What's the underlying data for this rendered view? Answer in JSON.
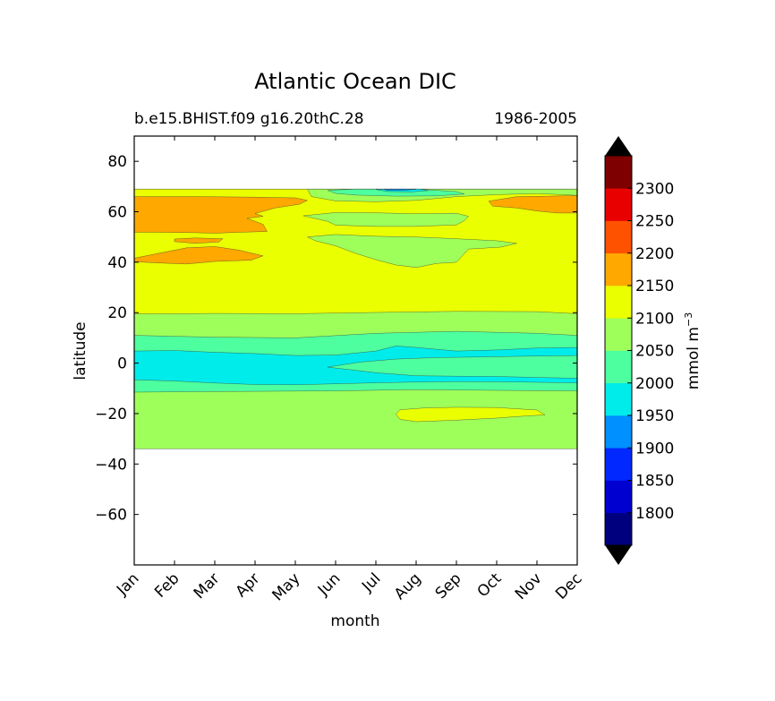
{
  "chart_data": {
    "type": "contourf",
    "title": "Atlantic Ocean DIC",
    "subtitle_left": "b.e15.BHIST.f09 g16.20thC.28",
    "subtitle_right": "1986-2005",
    "xlabel": "month",
    "ylabel": "latitude",
    "x_categories": [
      "Jan",
      "Feb",
      "Mar",
      "Apr",
      "May",
      "Jun",
      "Jul",
      "Aug",
      "Sep",
      "Oct",
      "Nov",
      "Dec"
    ],
    "ylim": [
      -80,
      90
    ],
    "yticks": [
      -60,
      -40,
      -20,
      0,
      20,
      40,
      60,
      80
    ],
    "data_lat_range": [
      -34,
      69
    ],
    "colorbar": {
      "label": "mmol m$^{-3}$",
      "label_main": "mmol m",
      "label_sup": "−3",
      "levels": [
        1750,
        1800,
        1850,
        1900,
        1950,
        2000,
        2050,
        2100,
        2150,
        2200,
        2250,
        2300,
        2350
      ],
      "tick_labels": [
        "1800",
        "1850",
        "1900",
        "1950",
        "2000",
        "2050",
        "2100",
        "2150",
        "2200",
        "2250",
        "2300"
      ],
      "colors": [
        "#00007f",
        "#0000d0",
        "#0028ff",
        "#0090ff",
        "#00ecea",
        "#4dff9e",
        "#9eff5a",
        "#eaff00",
        "#ffa800",
        "#ff5200",
        "#e80000",
        "#7f0000"
      ],
      "extend": "both",
      "under_color": "#000000",
      "over_color": "#000000"
    },
    "regions": [
      {
        "name": "background-2050-2100",
        "class": "2050-2100",
        "points": [
          [
            0,
            -34
          ],
          [
            11,
            -34
          ],
          [
            11,
            69
          ],
          [
            0,
            69
          ]
        ]
      },
      {
        "name": "band-2100-2150-north",
        "class": "2100-2150",
        "points": [
          [
            0,
            19.5
          ],
          [
            2,
            19.7
          ],
          [
            4,
            19.6
          ],
          [
            6,
            20.1
          ],
          [
            8,
            20.5
          ],
          [
            10,
            20.4
          ],
          [
            11,
            19.6
          ],
          [
            11,
            69
          ],
          [
            0,
            69
          ]
        ]
      },
      {
        "name": "band-2000-2050-tropics",
        "class": "2000-2050",
        "points": [
          [
            0,
            11
          ],
          [
            2,
            10.3
          ],
          [
            4,
            10
          ],
          [
            6,
            11.8
          ],
          [
            8,
            12.6
          ],
          [
            10,
            11.8
          ],
          [
            11,
            11
          ],
          [
            11,
            -11
          ],
          [
            9,
            -10.8
          ],
          [
            7,
            -10.5
          ],
          [
            5,
            -11
          ],
          [
            3,
            -11.2
          ],
          [
            0,
            -11.5
          ]
        ]
      },
      {
        "name": "band-1950-2000-equator",
        "class": "1950-2000",
        "points": [
          [
            0,
            4.8
          ],
          [
            1,
            5
          ],
          [
            2,
            4.3
          ],
          [
            3,
            3.8
          ],
          [
            4,
            3
          ],
          [
            5,
            3.2
          ],
          [
            6,
            4.8
          ],
          [
            6.5,
            6.8
          ],
          [
            7,
            6.2
          ],
          [
            8,
            4.8
          ],
          [
            9,
            5.2
          ],
          [
            10,
            6
          ],
          [
            11,
            6.2
          ],
          [
            11,
            -7.8
          ],
          [
            10,
            -7.6
          ],
          [
            9,
            -7.4
          ],
          [
            8,
            -7.3
          ],
          [
            7,
            -7.5
          ],
          [
            6,
            -7.8
          ],
          [
            5,
            -8.2
          ],
          [
            4,
            -8.6
          ],
          [
            3,
            -8.5
          ],
          [
            2,
            -7.9
          ],
          [
            1,
            -7.1
          ],
          [
            0,
            -6.6
          ]
        ]
      },
      {
        "name": "tongue-2000-2050-equator",
        "class": "2000-2050",
        "points": [
          [
            4.8,
            -1.6
          ],
          [
            5.6,
            0.4
          ],
          [
            6.5,
            1.6
          ],
          [
            7.5,
            2.2
          ],
          [
            8.5,
            2.4
          ],
          [
            9.5,
            2.7
          ],
          [
            11,
            3
          ],
          [
            11,
            -6
          ],
          [
            10,
            -5.7
          ],
          [
            9,
            -5.3
          ],
          [
            8,
            -5.2
          ],
          [
            7,
            -5
          ],
          [
            6,
            -3.8
          ],
          [
            5.2,
            -2.3
          ]
        ]
      },
      {
        "name": "patch-2100-2150-south",
        "class": "2100-2150",
        "points": [
          [
            6.6,
            -18.5
          ],
          [
            7.2,
            -17.8
          ],
          [
            8,
            -17.5
          ],
          [
            9,
            -17.6
          ],
          [
            10,
            -18.6
          ],
          [
            10.2,
            -20.5
          ],
          [
            9.5,
            -21.2
          ],
          [
            9,
            -21.8
          ],
          [
            8,
            -22.6
          ],
          [
            7,
            -23.2
          ],
          [
            6.6,
            -22.3
          ],
          [
            6.5,
            -20.2
          ]
        ]
      },
      {
        "name": "patch-2150-2200-jan-feb-north",
        "class": "2150-2200",
        "points": [
          [
            0,
            66
          ],
          [
            1.5,
            66
          ],
          [
            3,
            65.8
          ],
          [
            4,
            65.5
          ],
          [
            4.3,
            64.5
          ],
          [
            4.1,
            63
          ],
          [
            3.5,
            61.5
          ],
          [
            3,
            59.3
          ],
          [
            3.2,
            58.2
          ],
          [
            2.8,
            57.4
          ],
          [
            3.2,
            55
          ],
          [
            3.3,
            52.2
          ],
          [
            2.5,
            51.8
          ],
          [
            2,
            51.5
          ],
          [
            1.5,
            51.7
          ],
          [
            0.5,
            51.9
          ],
          [
            0,
            51.9
          ]
        ]
      },
      {
        "name": "patch-2150-2200-mar",
        "class": "2150-2200",
        "points": [
          [
            1,
            49.2
          ],
          [
            1.5,
            49.6
          ],
          [
            2.2,
            49.3
          ],
          [
            2.1,
            48
          ],
          [
            1.5,
            47.5
          ],
          [
            1,
            48.2
          ]
        ]
      },
      {
        "name": "patch-2150-2200-40n",
        "class": "2150-2200",
        "points": [
          [
            0,
            41.6
          ],
          [
            0.6,
            43.5
          ],
          [
            1.3,
            45.7
          ],
          [
            2,
            46.2
          ],
          [
            2.6,
            44.8
          ],
          [
            3.2,
            42.5
          ],
          [
            2.9,
            40.8
          ],
          [
            2,
            40.3
          ],
          [
            1.3,
            39.3
          ],
          [
            0.6,
            39.7
          ],
          [
            0,
            40.2
          ]
        ]
      },
      {
        "name": "patch-2150-2200-dec",
        "class": "2150-2200",
        "points": [
          [
            8.8,
            64.2
          ],
          [
            9.5,
            66
          ],
          [
            10.3,
            66.2
          ],
          [
            11,
            66.4
          ],
          [
            11,
            59.5
          ],
          [
            10.5,
            59.5
          ],
          [
            10,
            60.3
          ],
          [
            9.5,
            61.5
          ],
          [
            8.9,
            62.2
          ]
        ]
      },
      {
        "name": "patch-2050-2100-jun-jul",
        "class": "2050-2100",
        "points": [
          [
            4.3,
            69
          ],
          [
            11,
            69
          ],
          [
            11,
            66.5
          ],
          [
            10,
            67.2
          ],
          [
            9,
            66.8
          ],
          [
            8,
            66
          ],
          [
            7,
            64.5
          ],
          [
            6,
            64
          ],
          [
            5,
            64.3
          ],
          [
            4.4,
            66
          ]
        ]
      },
      {
        "name": "patch-2050-2100-55n",
        "class": "2050-2100",
        "points": [
          [
            4.2,
            58.4
          ],
          [
            5,
            59.7
          ],
          [
            6,
            59.6
          ],
          [
            7,
            59.2
          ],
          [
            8,
            59.4
          ],
          [
            8.3,
            58.2
          ],
          [
            8.2,
            56.5
          ],
          [
            8,
            54.8
          ],
          [
            7,
            54.2
          ],
          [
            6,
            54.2
          ],
          [
            5,
            54.7
          ],
          [
            4.8,
            56.2
          ]
        ]
      },
      {
        "name": "patch-2050-2100-45n",
        "class": "2050-2100",
        "points": [
          [
            4.3,
            50
          ],
          [
            5,
            51
          ],
          [
            6,
            50.3
          ],
          [
            7,
            50
          ],
          [
            8,
            49.3
          ],
          [
            9,
            48.5
          ],
          [
            9.5,
            47.5
          ],
          [
            9.1,
            46
          ],
          [
            8.3,
            45.2
          ],
          [
            8.2,
            43.5
          ],
          [
            8,
            40
          ],
          [
            7.5,
            39.5
          ],
          [
            7,
            37.9
          ],
          [
            6.5,
            38.9
          ],
          [
            6,
            41
          ],
          [
            5.5,
            43.5
          ],
          [
            5,
            46.5
          ],
          [
            4.5,
            48.5
          ]
        ]
      },
      {
        "name": "patch-2000-2050-top",
        "class": "2000-2050",
        "points": [
          [
            4.8,
            68.5
          ],
          [
            5.5,
            69
          ],
          [
            7,
            69
          ],
          [
            8,
            68
          ],
          [
            8.2,
            67
          ],
          [
            7.5,
            66.3
          ],
          [
            6.5,
            66.2
          ],
          [
            5.5,
            66.6
          ],
          [
            5,
            67.3
          ]
        ]
      },
      {
        "name": "patch-1950-2000-top",
        "class": "1950-2000",
        "points": [
          [
            6,
            68.8
          ],
          [
            6.3,
            69
          ],
          [
            7.1,
            69
          ],
          [
            7.3,
            68.4
          ],
          [
            6.9,
            67.9
          ],
          [
            6.3,
            68
          ]
        ]
      },
      {
        "name": "patch-1900-1950-top",
        "class": "1900-1950",
        "points": [
          [
            6.2,
            68.9
          ],
          [
            6.6,
            69
          ],
          [
            7,
            68.9
          ],
          [
            6.7,
            68.5
          ],
          [
            6.3,
            68.5
          ]
        ]
      }
    ]
  }
}
